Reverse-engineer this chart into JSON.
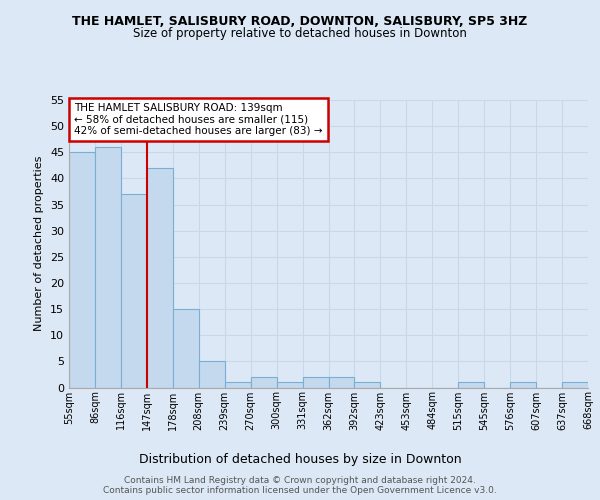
{
  "title": "THE HAMLET, SALISBURY ROAD, DOWNTON, SALISBURY, SP5 3HZ",
  "subtitle": "Size of property relative to detached houses in Downton",
  "xlabel": "Distribution of detached houses by size in Downton",
  "ylabel": "Number of detached properties",
  "bar_values": [
    45,
    46,
    37,
    42,
    15,
    5,
    1,
    2,
    1,
    2,
    2,
    1,
    0,
    0,
    0,
    1,
    0,
    1,
    0,
    1
  ],
  "tick_labels": [
    "55sqm",
    "86sqm",
    "116sqm",
    "147sqm",
    "178sqm",
    "208sqm",
    "239sqm",
    "270sqm",
    "300sqm",
    "331sqm",
    "362sqm",
    "392sqm",
    "423sqm",
    "453sqm",
    "484sqm",
    "515sqm",
    "545sqm",
    "576sqm",
    "607sqm",
    "637sqm",
    "668sqm"
  ],
  "bar_color": "#c5d9ee",
  "bar_edge_color": "#7aafd4",
  "grid_color": "#c8d8e8",
  "vline_x": 3,
  "vline_color": "#cc0000",
  "annotation_line1": "THE HAMLET SALISBURY ROAD: 139sqm",
  "annotation_line2": "← 58% of detached houses are smaller (115)",
  "annotation_line3": "42% of semi-detached houses are larger (83) →",
  "annotation_box_facecolor": "#ffffff",
  "annotation_box_edgecolor": "#cc0000",
  "footer_line1": "Contains HM Land Registry data © Crown copyright and database right 2024.",
  "footer_line2": "Contains public sector information licensed under the Open Government Licence v3.0.",
  "ylim": [
    0,
    55
  ],
  "yticks": [
    0,
    5,
    10,
    15,
    20,
    25,
    30,
    35,
    40,
    45,
    50,
    55
  ],
  "bg_color": "#dce8f5",
  "title_fontsize": 9,
  "subtitle_fontsize": 8.5,
  "ylabel_fontsize": 8,
  "xlabel_fontsize": 9
}
